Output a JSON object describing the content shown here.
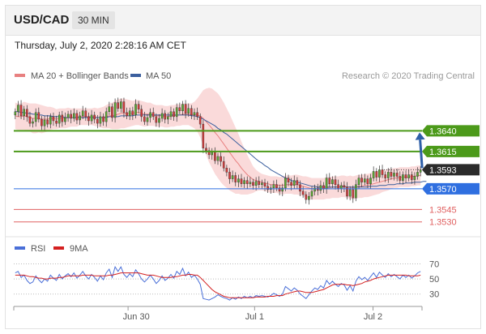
{
  "header": {
    "symbol": "USD/CAD",
    "timeframe": "30 MIN",
    "datetime": "Thursday, July 2, 2020 2:28:16 AM CET"
  },
  "colors": {
    "up": "#5aa832",
    "down": "#d43b3b",
    "ma20": "#e88080",
    "ma50": "#3b5f9e",
    "band": "#f9d3d3",
    "resistance": "#4c9a1a",
    "current": "#2b2b2b",
    "pivot": "#2f6fe0",
    "support": "#e06060",
    "rsi": "#4a6fd8",
    "rsi_ma": "#d42020",
    "arrow": "#2e5fa8"
  },
  "chart_data": [
    {
      "type": "candlestick",
      "legend": {
        "ma20": "MA 20 + Bollinger Bands",
        "ma50": "MA 50",
        "placement": "top-left"
      },
      "credit": "Research © 2020 Trading Central",
      "ylim": [
        1.3518,
        1.37
      ],
      "x_ticks": [
        "Jun 30",
        "Jul 1",
        "Jul 2"
      ],
      "close": [
        1.3663,
        1.3671,
        1.3658,
        1.3666,
        1.3657,
        1.3649,
        1.3651,
        1.3662,
        1.3654,
        1.3646,
        1.3653,
        1.3648,
        1.3657,
        1.3652,
        1.3649,
        1.3659,
        1.3651,
        1.3656,
        1.366,
        1.3655,
        1.3661,
        1.3653,
        1.3658,
        1.3664,
        1.3657,
        1.3652,
        1.3659,
        1.3654,
        1.3649,
        1.3657,
        1.3651,
        1.3663,
        1.3669,
        1.3656,
        1.3674,
        1.3667,
        1.3675,
        1.3662,
        1.3658,
        1.3664,
        1.3659,
        1.3672,
        1.3666,
        1.3657,
        1.3651,
        1.3656,
        1.3662,
        1.3657,
        1.365,
        1.3655,
        1.3661,
        1.3654,
        1.3657,
        1.3663,
        1.3657,
        1.3668,
        1.3664,
        1.3672,
        1.3661,
        1.3667,
        1.3659,
        1.3662,
        1.3657,
        1.3648,
        1.3619,
        1.3616,
        1.3611,
        1.3614,
        1.3604,
        1.3609,
        1.3603,
        1.3595,
        1.359,
        1.3582,
        1.3586,
        1.3578,
        1.3582,
        1.3576,
        1.358,
        1.3576,
        1.3578,
        1.3574,
        1.3579,
        1.3575,
        1.3577,
        1.3573,
        1.3569,
        1.3571,
        1.3575,
        1.3571,
        1.3567,
        1.3571,
        1.3583,
        1.3578,
        1.3574,
        1.358,
        1.3575,
        1.3567,
        1.3563,
        1.3557,
        1.3561,
        1.3567,
        1.3571,
        1.3568,
        1.3574,
        1.357,
        1.3583,
        1.3576,
        1.3581,
        1.3575,
        1.357,
        1.3574,
        1.3572,
        1.3561,
        1.3569,
        1.3559,
        1.3575,
        1.3583,
        1.3578,
        1.3582,
        1.3576,
        1.3583,
        1.3591,
        1.3584,
        1.3593,
        1.3587,
        1.3583,
        1.359,
        1.3585,
        1.3589,
        1.3585,
        1.358,
        1.3587,
        1.3583,
        1.3587,
        1.3581,
        1.3585,
        1.359,
        1.3593
      ],
      "ma20": [
        1.3658,
        1.3657,
        1.3657,
        1.3658,
        1.3657,
        1.3656,
        1.3655,
        1.3655,
        1.3655,
        1.3654,
        1.3654,
        1.3654,
        1.3655,
        1.3655,
        1.3654,
        1.3655,
        1.3655,
        1.3655,
        1.3656,
        1.3656,
        1.3656,
        1.3656,
        1.3657,
        1.3657,
        1.3657,
        1.3657,
        1.3657,
        1.3657,
        1.3656,
        1.3656,
        1.3656,
        1.3657,
        1.3658,
        1.3658,
        1.3659,
        1.366,
        1.3661,
        1.3661,
        1.3661,
        1.3661,
        1.3661,
        1.3662,
        1.3662,
        1.3661,
        1.366,
        1.366,
        1.366,
        1.3659,
        1.3658,
        1.3658,
        1.3658,
        1.3657,
        1.3657,
        1.3658,
        1.3658,
        1.3659,
        1.3659,
        1.366,
        1.366,
        1.366,
        1.3659,
        1.3659,
        1.3659,
        1.3658,
        1.3655,
        1.3651,
        1.3647,
        1.3643,
        1.3638,
        1.3634,
        1.3629,
        1.3624,
        1.3619,
        1.3614,
        1.3609,
        1.3604,
        1.36,
        1.3595,
        1.3591,
        1.3587,
        1.3584,
        1.3581,
        1.358,
        1.3579,
        1.3578,
        1.3577,
        1.3576,
        1.3575,
        1.3575,
        1.3575,
        1.3574,
        1.3574,
        1.3575,
        1.3575,
        1.3575,
        1.3575,
        1.3575,
        1.3574,
        1.3573,
        1.3572,
        1.3571,
        1.357,
        1.357,
        1.357,
        1.357,
        1.357,
        1.3571,
        1.3571,
        1.3572,
        1.3572,
        1.3572,
        1.3573,
        1.3573,
        1.3572,
        1.3572,
        1.3571,
        1.3572,
        1.3573,
        1.3573,
        1.3574,
        1.3574,
        1.3575,
        1.3576,
        1.3577,
        1.3578,
        1.3579,
        1.358,
        1.3581,
        1.3582,
        1.3583,
        1.3583,
        1.3584,
        1.3584,
        1.3584,
        1.3584,
        1.3585,
        1.3585,
        1.3586,
        1.3586
      ],
      "ma50": [
        1.3663,
        1.3663,
        1.3662,
        1.3662,
        1.3661,
        1.3661,
        1.366,
        1.366,
        1.3659,
        1.3659,
        1.3658,
        1.3658,
        1.3658,
        1.3657,
        1.3657,
        1.3657,
        1.3657,
        1.3656,
        1.3656,
        1.3656,
        1.3656,
        1.3656,
        1.3656,
        1.3656,
        1.3656,
        1.3656,
        1.3656,
        1.3656,
        1.3656,
        1.3656,
        1.3656,
        1.3656,
        1.3657,
        1.3657,
        1.3657,
        1.3657,
        1.3658,
        1.3658,
        1.3658,
        1.3658,
        1.3658,
        1.3659,
        1.3659,
        1.3659,
        1.3659,
        1.3659,
        1.3659,
        1.3659,
        1.3659,
        1.3659,
        1.3659,
        1.3659,
        1.3659,
        1.3659,
        1.3659,
        1.3659,
        1.3659,
        1.3659,
        1.3659,
        1.3659,
        1.3658,
        1.3658,
        1.3657,
        1.3656,
        1.3654,
        1.3652,
        1.365,
        1.3648,
        1.3646,
        1.3643,
        1.3641,
        1.3638,
        1.3636,
        1.3633,
        1.363,
        1.3627,
        1.3624,
        1.3621,
        1.3618,
        1.3615,
        1.3612,
        1.3609,
        1.3606,
        1.3603,
        1.3601,
        1.3598,
        1.3596,
        1.3593,
        1.3591,
        1.3589,
        1.3587,
        1.3585,
        1.3583,
        1.3582,
        1.358,
        1.3579,
        1.3578,
        1.3577,
        1.3576,
        1.3575,
        1.3574,
        1.3573,
        1.3573,
        1.3572,
        1.3572,
        1.3572,
        1.3572,
        1.3572,
        1.3572,
        1.3572,
        1.3572,
        1.3572,
        1.3572,
        1.3572,
        1.3572,
        1.3572,
        1.3572,
        1.3572,
        1.3572,
        1.3572,
        1.3572,
        1.3573,
        1.3573,
        1.3573,
        1.3574,
        1.3574,
        1.3574,
        1.3575,
        1.3575,
        1.3575,
        1.3576,
        1.3576,
        1.3576,
        1.3577,
        1.3577,
        1.3577,
        1.3578,
        1.3578,
        1.3578,
        1.3579,
        1.3579
      ],
      "band_width": [
        0.0016,
        0.0016,
        0.0016,
        0.0017,
        0.0017,
        0.0017,
        0.0018,
        0.0018,
        0.0017,
        0.0017,
        0.0016,
        0.0015,
        0.0014,
        0.0013,
        0.0012,
        0.0012,
        0.0012,
        0.0012,
        0.0012,
        0.0011,
        0.0011,
        0.0011,
        0.001,
        0.001,
        0.001,
        0.001,
        0.001,
        0.0011,
        0.0011,
        0.0012,
        0.0013,
        0.0014,
        0.0015,
        0.0016,
        0.0017,
        0.0018,
        0.0018,
        0.0018,
        0.0017,
        0.0016,
        0.0015,
        0.0015,
        0.0015,
        0.0015,
        0.0015,
        0.0014,
        0.0014,
        0.0013,
        0.0013,
        0.0013,
        0.0013,
        0.0013,
        0.0013,
        0.0013,
        0.0013,
        0.0013,
        0.0013,
        0.0013,
        0.0013,
        0.0013,
        0.0014,
        0.0016,
        0.002,
        0.0026,
        0.0034,
        0.004,
        0.0045,
        0.0048,
        0.005,
        0.0051,
        0.0051,
        0.005,
        0.0048,
        0.0046,
        0.0043,
        0.004,
        0.0036,
        0.0032,
        0.0028,
        0.0024,
        0.002,
        0.0016,
        0.0013,
        0.0011,
        0.001,
        0.001,
        0.001,
        0.001,
        0.001,
        0.001,
        0.001,
        0.0011,
        0.0011,
        0.0011,
        0.0011,
        0.0012,
        0.0012,
        0.0012,
        0.0012,
        0.0013,
        0.0013,
        0.0013,
        0.0013,
        0.0013,
        0.0013,
        0.0013,
        0.0013,
        0.0013,
        0.0013,
        0.0013,
        0.0013,
        0.0013,
        0.0013,
        0.0013,
        0.0014,
        0.0014,
        0.0014,
        0.0014,
        0.0014,
        0.0014,
        0.0014,
        0.0014,
        0.0014,
        0.0014,
        0.0014,
        0.0013,
        0.0013,
        0.0013,
        0.0012,
        0.0012,
        0.0012,
        0.0012,
        0.0012,
        0.0012,
        0.0012,
        0.0012,
        0.0012,
        0.0012,
        0.0012,
        0.0012
      ],
      "levels": [
        {
          "name": "resistance-2",
          "value": 1.364,
          "label": "1.3640",
          "role": "resistance"
        },
        {
          "name": "resistance-1",
          "value": 1.3615,
          "label": "1.3615",
          "role": "resistance"
        },
        {
          "name": "current-price",
          "value": 1.3593,
          "label": "1.3593",
          "role": "current"
        },
        {
          "name": "pivot",
          "value": 1.357,
          "label": "1.3570",
          "role": "pivot"
        },
        {
          "name": "support-1",
          "value": 1.3545,
          "label": "1.3545",
          "role": "support"
        },
        {
          "name": "support-2",
          "value": 1.353,
          "label": "1.3530",
          "role": "support"
        }
      ],
      "arrow": {
        "from_value": 1.3595,
        "to_value": 1.3638,
        "direction": "up"
      }
    },
    {
      "type": "line",
      "legend": {
        "rsi": "RSI",
        "ma": "9MA",
        "placement": "top-left"
      },
      "ylim": [
        20,
        78
      ],
      "y_ticks": [
        70,
        50,
        30
      ],
      "rsi": [
        58,
        60,
        52,
        55,
        48,
        44,
        46,
        54,
        49,
        45,
        50,
        47,
        55,
        51,
        48,
        56,
        50,
        54,
        57,
        53,
        58,
        51,
        55,
        60,
        54,
        50,
        56,
        52,
        47,
        54,
        49,
        58,
        63,
        52,
        66,
        60,
        66,
        56,
        52,
        57,
        53,
        62,
        57,
        50,
        46,
        50,
        55,
        50,
        44,
        48,
        54,
        48,
        51,
        56,
        51,
        60,
        56,
        64,
        54,
        59,
        52,
        55,
        50,
        43,
        24,
        23,
        22,
        24,
        26,
        29,
        27,
        25,
        24,
        22,
        25,
        23,
        26,
        24,
        27,
        25,
        27,
        25,
        28,
        27,
        28,
        27,
        26,
        28,
        31,
        29,
        27,
        30,
        40,
        37,
        34,
        38,
        35,
        30,
        27,
        24,
        29,
        34,
        38,
        36,
        41,
        38,
        48,
        43,
        47,
        43,
        40,
        44,
        42,
        35,
        41,
        34,
        47,
        53,
        49,
        52,
        48,
        53,
        58,
        52,
        59,
        55,
        52,
        57,
        53,
        56,
        53,
        50,
        55,
        52,
        55,
        51,
        54,
        58,
        60
      ],
      "rsi_ma": [
        55,
        55,
        55,
        55,
        54,
        53,
        53,
        52,
        51,
        51,
        50,
        50,
        51,
        51,
        51,
        52,
        52,
        53,
        54,
        54,
        54,
        54,
        54,
        55,
        55,
        55,
        55,
        54,
        54,
        54,
        54,
        54,
        55,
        55,
        56,
        57,
        58,
        58,
        58,
        58,
        58,
        58,
        58,
        57,
        56,
        55,
        55,
        55,
        54,
        53,
        52,
        52,
        52,
        52,
        53,
        53,
        54,
        55,
        55,
        56,
        56,
        55,
        55,
        52,
        48,
        44,
        40,
        36,
        33,
        31,
        29,
        27,
        26,
        25,
        25,
        25,
        25,
        25,
        25,
        25,
        25,
        25,
        26,
        26,
        26,
        26,
        27,
        27,
        27,
        28,
        28,
        28,
        30,
        31,
        32,
        33,
        34,
        34,
        33,
        32,
        32,
        32,
        33,
        34,
        35,
        36,
        38,
        40,
        42,
        43,
        43,
        43,
        43,
        42,
        42,
        41,
        42,
        43,
        44,
        46,
        47,
        48,
        50,
        51,
        52,
        53,
        54,
        55,
        55,
        55,
        55,
        55,
        55,
        55,
        54,
        54,
        54,
        54,
        55
      ]
    }
  ]
}
